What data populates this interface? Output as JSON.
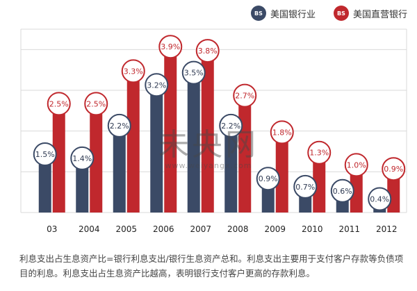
{
  "legend": {
    "items": [
      {
        "label": "美国银行业",
        "icon": "bank-logo-icon",
        "color": "#3b4a66"
      },
      {
        "label": "美国直营银行",
        "icon": "bank-logo-icon",
        "color": "#c0282d"
      }
    ]
  },
  "colors": {
    "blue": "#3b4a66",
    "red": "#c0282d",
    "grid": "#d9d9d9"
  },
  "chart_data": {
    "type": "bar",
    "categories": [
      "03",
      "2004",
      "2005",
      "2006",
      "2007",
      "2008",
      "2009",
      "2010",
      "2011",
      "2012"
    ],
    "series": [
      {
        "name": "美国银行业",
        "values": [
          1.5,
          1.4,
          2.2,
          3.2,
          3.5,
          2.2,
          0.9,
          0.7,
          0.6,
          0.4
        ],
        "labels": [
          "1.5%",
          "1.4%",
          "2.2%",
          "3.2%",
          "3.5%",
          "2.2%",
          "0.9%",
          "0.7%",
          "0.6%",
          "0.4%"
        ]
      },
      {
        "name": "美国直营银行",
        "values": [
          2.5,
          2.5,
          3.3,
          3.9,
          3.8,
          2.7,
          1.8,
          1.3,
          1.0,
          0.9
        ],
        "labels": [
          "2.5%",
          "2.5%",
          "3.3%",
          "3.9%",
          "3.8%",
          "2.7%",
          "1.8%",
          "1.3%",
          "1.0%",
          "0.9%"
        ]
      }
    ],
    "ylim": [
      0,
      4.5
    ],
    "grid": true,
    "legend_position": "top-right"
  },
  "caption": "利息支出占生息资产比=银行利息支出/银行生息资产总和。利息支出主要用于支付客户存款等负债项目的利息。利息支出占生息资产比越高，表明银行支付客户更高的存款利息。",
  "watermark": {
    "main": "未央网",
    "url": "www.weiyangx.com"
  }
}
